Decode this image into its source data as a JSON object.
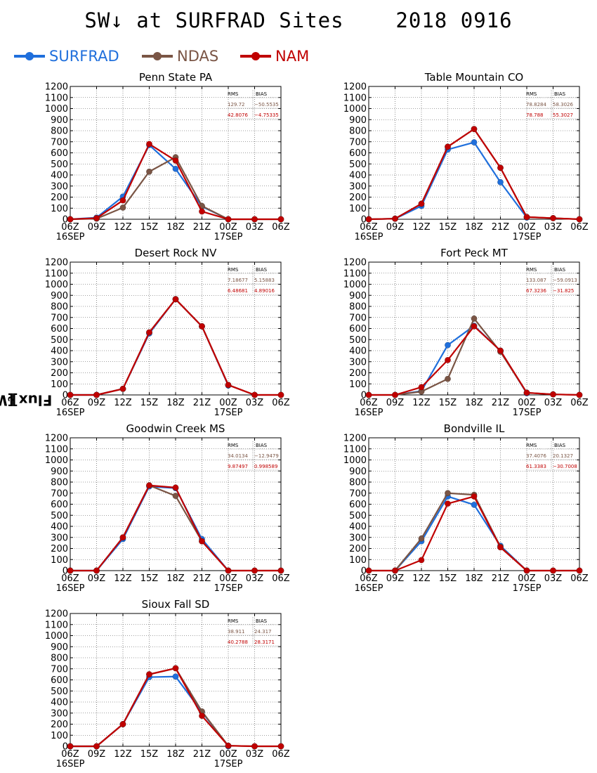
{
  "title": "SW↓ at SURFRAD Sites    2018 0916",
  "ylabel": "Flux [Wm",
  "ylabel_exp": "-2",
  "ylabel_close": "]",
  "legend": [
    {
      "name": "SURFRAD",
      "color": "#1f6fdc"
    },
    {
      "name": "NDAS",
      "color": "#7a5545"
    },
    {
      "name": "NAM",
      "color": "#c00000"
    }
  ],
  "axis": {
    "x_ticks": [
      "06Z",
      "09Z",
      "12Z",
      "15Z",
      "18Z",
      "21Z",
      "00Z",
      "03Z",
      "06Z"
    ],
    "x_date_labels": [
      {
        "tick": 0,
        "label": "16SEP"
      },
      {
        "tick": 6,
        "label": "17SEP"
      }
    ],
    "y_ticks": [
      0,
      100,
      200,
      300,
      400,
      500,
      600,
      700,
      800,
      900,
      1000,
      1100,
      1200
    ],
    "ylim": [
      0,
      1200
    ],
    "grid": true
  },
  "stats_headers": [
    "RMS",
    "BIAS"
  ],
  "chart_data": [
    {
      "type": "line",
      "title": "Penn State PA",
      "categories": [
        "06Z",
        "09Z",
        "12Z",
        "15Z",
        "18Z",
        "21Z",
        "00Z",
        "03Z",
        "06Z"
      ],
      "ylim": [
        0,
        1200
      ],
      "series": [
        {
          "name": "SURFRAD",
          "values": [
            0,
            15,
            205,
            670,
            455,
            115,
            0,
            null,
            null
          ]
        },
        {
          "name": "NDAS",
          "values": [
            0,
            5,
            105,
            430,
            560,
            120,
            0,
            0,
            0
          ]
        },
        {
          "name": "NAM",
          "values": [
            0,
            10,
            170,
            680,
            530,
            70,
            0,
            0,
            0
          ]
        }
      ],
      "stats": [
        {
          "series": "NDAS",
          "rms": "129.72",
          "bias": "−50.5535"
        },
        {
          "series": "NAM",
          "rms": "42.8076",
          "bias": "−4.75335"
        }
      ]
    },
    {
      "type": "line",
      "title": "Table Mountain CO",
      "categories": [
        "06Z",
        "09Z",
        "12Z",
        "15Z",
        "18Z",
        "21Z",
        "00Z",
        "03Z",
        "06Z"
      ],
      "ylim": [
        0,
        1200
      ],
      "series": [
        {
          "name": "SURFRAD",
          "values": [
            0,
            5,
            120,
            630,
            695,
            335,
            15,
            null,
            null
          ]
        },
        {
          "name": "NDAS",
          "values": [
            0,
            5,
            140,
            655,
            815,
            465,
            20,
            10,
            0
          ]
        },
        {
          "name": "NAM",
          "values": [
            0,
            5,
            140,
            655,
            815,
            465,
            20,
            10,
            0
          ]
        }
      ],
      "stats": [
        {
          "series": "NDAS",
          "rms": "78.8284",
          "bias": "58.3026"
        },
        {
          "series": "NAM",
          "rms": "78.788",
          "bias": "55.3027"
        }
      ]
    },
    {
      "type": "line",
      "title": "Desert Rock NV",
      "categories": [
        "06Z",
        "09Z",
        "12Z",
        "15Z",
        "18Z",
        "21Z",
        "00Z",
        "03Z",
        "06Z"
      ],
      "ylim": [
        0,
        1200
      ],
      "series": [
        {
          "name": "SURFRAD",
          "values": [
            0,
            0,
            55,
            555,
            865,
            620,
            85,
            null,
            null
          ]
        },
        {
          "name": "NDAS",
          "values": [
            0,
            0,
            55,
            565,
            865,
            620,
            90,
            0,
            0
          ]
        },
        {
          "name": "NAM",
          "values": [
            0,
            0,
            55,
            565,
            865,
            620,
            90,
            0,
            0
          ]
        }
      ],
      "stats": [
        {
          "series": "NDAS",
          "rms": "7.18677",
          "bias": "5.15883"
        },
        {
          "series": "NAM",
          "rms": "6.48681",
          "bias": "4.89016"
        }
      ]
    },
    {
      "type": "line",
      "title": "Fort Peck MT",
      "categories": [
        "06Z",
        "09Z",
        "12Z",
        "15Z",
        "18Z",
        "21Z",
        "00Z",
        "03Z",
        "06Z"
      ],
      "ylim": [
        0,
        1200
      ],
      "series": [
        {
          "name": "SURFRAD",
          "values": [
            null,
            0,
            35,
            450,
            625,
            400,
            15,
            null,
            null
          ]
        },
        {
          "name": "NDAS",
          "values": [
            0,
            0,
            30,
            145,
            690,
            390,
            20,
            5,
            0
          ]
        },
        {
          "name": "NAM",
          "values": [
            0,
            0,
            70,
            315,
            620,
            400,
            20,
            5,
            0
          ]
        }
      ],
      "stats": [
        {
          "series": "NDAS",
          "rms": "133.087",
          "bias": "−59.0913"
        },
        {
          "series": "NAM",
          "rms": "67.3236",
          "bias": "−31.825"
        }
      ]
    },
    {
      "type": "line",
      "title": "Goodwin Creek MS",
      "categories": [
        "06Z",
        "09Z",
        "12Z",
        "15Z",
        "18Z",
        "21Z",
        "00Z",
        "03Z",
        "06Z"
      ],
      "ylim": [
        0,
        1200
      ],
      "series": [
        {
          "name": "SURFRAD",
          "values": [
            0,
            0,
            285,
            760,
            745,
            285,
            0,
            null,
            null
          ]
        },
        {
          "name": "NDAS",
          "values": [
            0,
            0,
            300,
            770,
            675,
            265,
            0,
            0,
            0
          ]
        },
        {
          "name": "NAM",
          "values": [
            0,
            0,
            300,
            770,
            750,
            265,
            0,
            0,
            0
          ]
        }
      ],
      "stats": [
        {
          "series": "NDAS",
          "rms": "34.0134",
          "bias": "−12.9479"
        },
        {
          "series": "NAM",
          "rms": "9.87497",
          "bias": "0.998589"
        }
      ]
    },
    {
      "type": "line",
      "title": "Bondville IL",
      "categories": [
        "06Z",
        "09Z",
        "12Z",
        "15Z",
        "18Z",
        "21Z",
        "00Z",
        "03Z",
        "06Z"
      ],
      "ylim": [
        0,
        1200
      ],
      "series": [
        {
          "name": "SURFRAD",
          "values": [
            null,
            0,
            265,
            670,
            595,
            225,
            0,
            null,
            null
          ]
        },
        {
          "name": "NDAS",
          "values": [
            0,
            0,
            290,
            700,
            685,
            215,
            0,
            0,
            0
          ]
        },
        {
          "name": "NAM",
          "values": [
            0,
            0,
            95,
            605,
            670,
            210,
            0,
            0,
            0
          ]
        }
      ],
      "stats": [
        {
          "series": "NDAS",
          "rms": "37.4076",
          "bias": "20.1327"
        },
        {
          "series": "NAM",
          "rms": "61.3383",
          "bias": "−30.7008"
        }
      ]
    },
    {
      "type": "line",
      "title": "Sioux Fall SD",
      "categories": [
        "06Z",
        "09Z",
        "12Z",
        "15Z",
        "18Z",
        "21Z",
        "00Z",
        "03Z",
        "06Z"
      ],
      "ylim": [
        0,
        1200
      ],
      "series": [
        {
          "name": "SURFRAD",
          "values": [
            0,
            0,
            200,
            625,
            630,
            310,
            0,
            null,
            null
          ]
        },
        {
          "name": "NDAS",
          "values": [
            0,
            0,
            200,
            650,
            705,
            315,
            5,
            0,
            0
          ]
        },
        {
          "name": "NAM",
          "values": [
            0,
            0,
            200,
            650,
            705,
            275,
            5,
            0,
            0
          ]
        }
      ],
      "stats": [
        {
          "series": "NDAS",
          "rms": "38.911",
          "bias": "24.317"
        },
        {
          "series": "NAM",
          "rms": "40.2788",
          "bias": "28.3171"
        }
      ]
    }
  ]
}
